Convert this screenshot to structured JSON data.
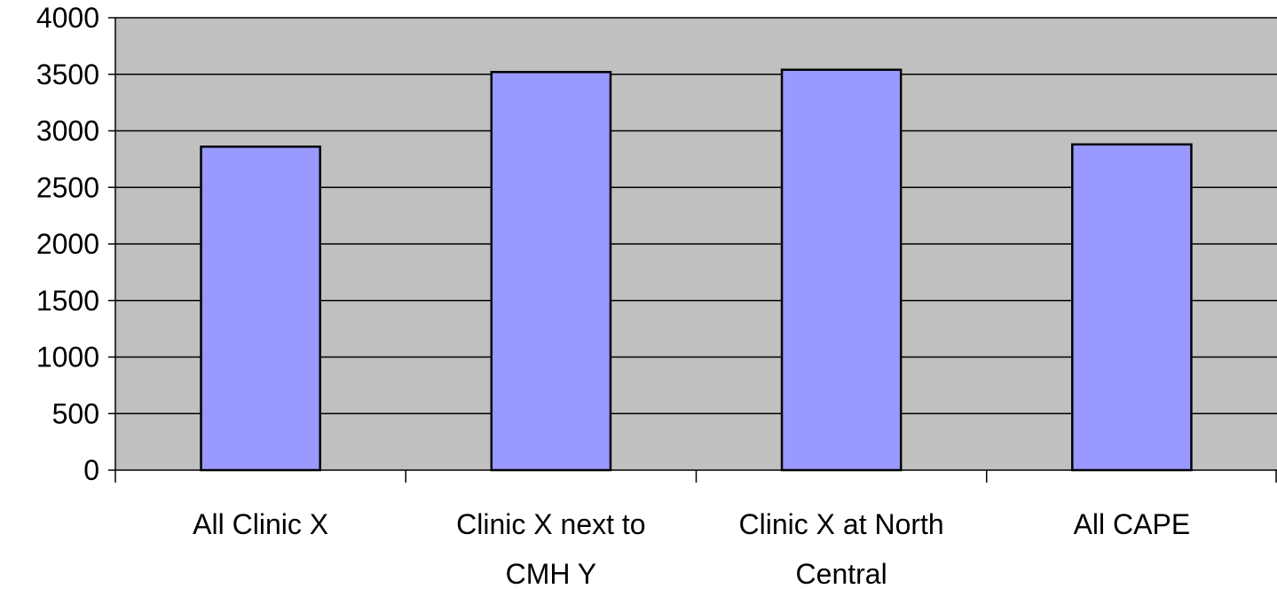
{
  "chart_data": {
    "type": "bar",
    "categories": [
      [
        "All Clinic X"
      ],
      [
        "Clinic X next to",
        "CMH Y"
      ],
      [
        "Clinic X at North",
        "Central"
      ],
      [
        "All CAPE"
      ]
    ],
    "values": [
      2860,
      3520,
      3540,
      2880
    ],
    "title": "",
    "xlabel": "",
    "ylabel": "",
    "ylim": [
      0,
      4000
    ],
    "yticks": [
      0,
      500,
      1000,
      1500,
      2000,
      2500,
      3000,
      3500,
      4000
    ],
    "grid": true,
    "legend": "none",
    "colors": {
      "plot_background": "#c0c0c0",
      "bar_fill": "#9999ff",
      "bar_stroke": "#000000",
      "gridline": "#000000"
    }
  }
}
